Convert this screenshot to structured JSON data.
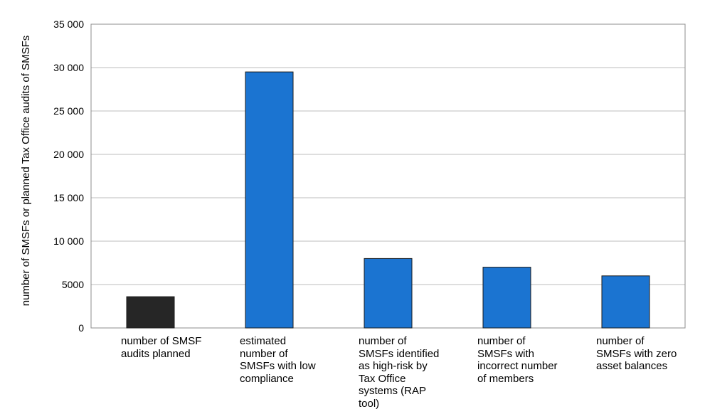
{
  "chart_data": {
    "type": "bar",
    "title": "",
    "xlabel": "",
    "ylabel": "number of SMSFs or planned Tax Office audits of SMSFs",
    "ylim": [
      0,
      35000
    ],
    "yticks": [
      0,
      5000,
      10000,
      15000,
      20000,
      25000,
      30000,
      35000
    ],
    "ytick_labels": [
      "0",
      "5000",
      "10 000",
      "15 000",
      "20 000",
      "25 000",
      "30 000",
      "35 000"
    ],
    "grid": true,
    "legend": "none",
    "categories": [
      "number of SMSF audits planned",
      "estimated number of SMSFs with low compliance",
      "number of SMSFs identified as high-risk by Tax Office systems (RAP tool)",
      "number of SMSFs with incorrect number of members",
      "number of SMSFs with zero asset balances"
    ],
    "values": [
      3600,
      29500,
      8000,
      7000,
      6000
    ],
    "colors": [
      "#262626",
      "#1b74d1",
      "#1b74d1",
      "#1b74d1",
      "#1b74d1"
    ]
  }
}
